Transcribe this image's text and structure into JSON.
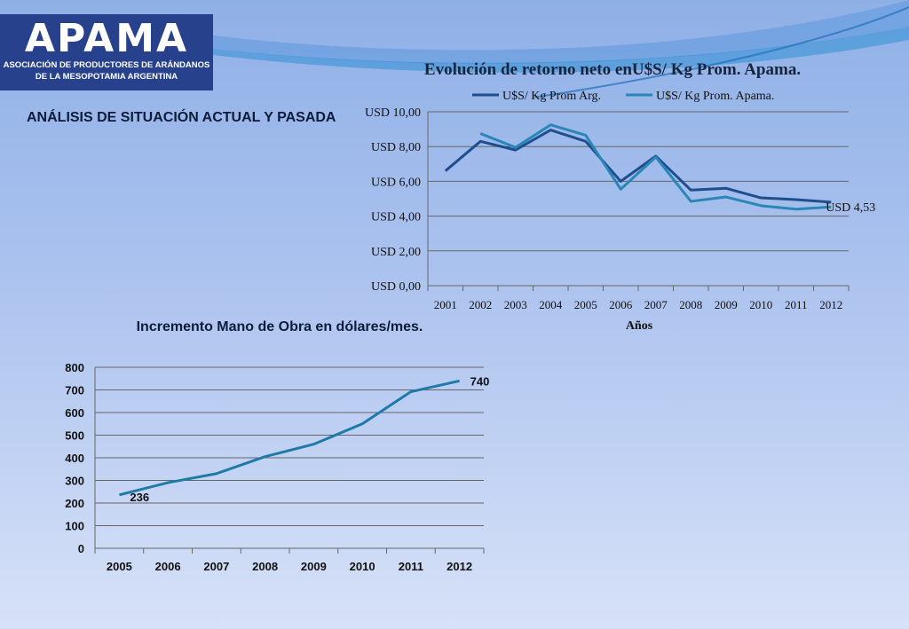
{
  "logo": {
    "name": "APAMA",
    "subtitle_1": "ASOCIACIÓN DE PRODUCTORES DE ARÁNDANOS",
    "subtitle_2": "DE LA MESOPOTAMIA ARGENTINA"
  },
  "section_title": "ANÁLISIS DE SITUACIÓN ACTUAL Y PASADA",
  "colors": {
    "series_arg": "#1f4e8f",
    "series_apama": "#2a86b6",
    "series_labor": "#1f7aa8",
    "grid": "#666666",
    "logo_bg": "#27418d"
  },
  "chart_data": [
    {
      "type": "line",
      "title": "Evolución de retorno neto enU$S/ Kg Prom. Apama.",
      "xlabel": "Años",
      "ylabel": "",
      "categories": [
        "2001",
        "2002",
        "2003",
        "2004",
        "2005",
        "2006",
        "2007",
        "2008",
        "2009",
        "2010",
        "2011",
        "2012"
      ],
      "series": [
        {
          "name": "U$S/ Kg Prom Arg.",
          "values": [
            6.6,
            8.3,
            7.8,
            8.95,
            8.3,
            6.0,
            7.45,
            5.5,
            5.6,
            5.05,
            4.95,
            4.8
          ]
        },
        {
          "name": "U$S/ Kg Prom. Apama.",
          "values": [
            null,
            8.75,
            7.95,
            9.25,
            8.65,
            5.55,
            7.4,
            4.85,
            5.1,
            4.6,
            4.4,
            4.53
          ]
        }
      ],
      "ylim": [
        0,
        10
      ],
      "yticks": [
        0,
        2,
        4,
        6,
        8,
        10
      ],
      "ytick_labels": [
        "USD 0,00",
        "USD 2,00",
        "USD 4,00",
        "USD 6,00",
        "USD 8,00",
        "USD 10,00"
      ],
      "annotation": "USD 4,53",
      "legend": "top",
      "grid": true
    },
    {
      "type": "line",
      "title": "Incremento Mano de Obra en dólares/mes.",
      "xlabel": "",
      "ylabel": "",
      "categories": [
        "2005",
        "2006",
        "2007",
        "2008",
        "2009",
        "2010",
        "2011",
        "2012"
      ],
      "series": [
        {
          "values": [
            236,
            290,
            330,
            405,
            460,
            550,
            692,
            740
          ]
        }
      ],
      "ylim": [
        0,
        800
      ],
      "yticks": [
        0,
        100,
        200,
        300,
        400,
        500,
        600,
        700,
        800
      ],
      "annotations": [
        "236",
        "740"
      ],
      "grid": true
    }
  ]
}
